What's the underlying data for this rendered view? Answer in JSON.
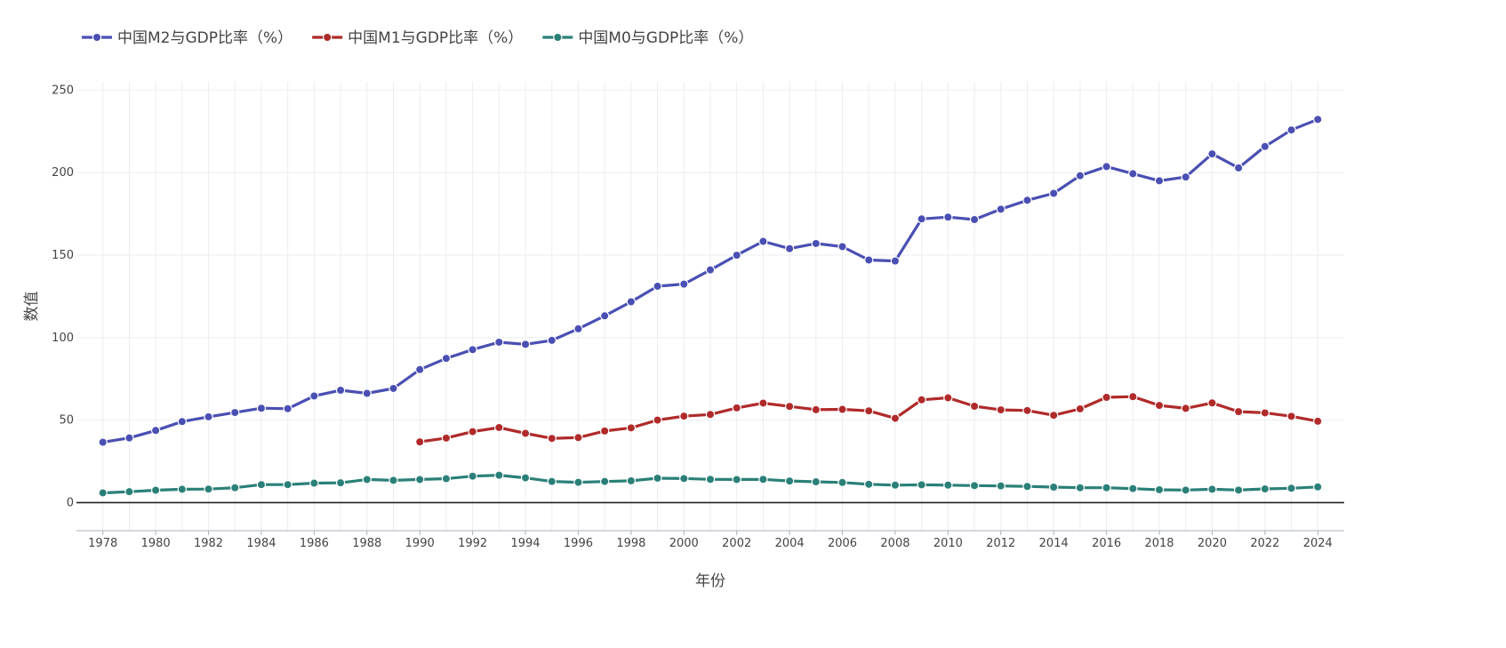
{
  "chart_data": {
    "type": "line",
    "xlabel": "年份",
    "ylabel": "数值",
    "x": [
      1978,
      1979,
      1980,
      1981,
      1982,
      1983,
      1984,
      1985,
      1986,
      1987,
      1988,
      1989,
      1990,
      1991,
      1992,
      1993,
      1994,
      1995,
      1996,
      1997,
      1998,
      1999,
      2000,
      2001,
      2002,
      2003,
      2004,
      2005,
      2006,
      2007,
      2008,
      2009,
      2010,
      2011,
      2012,
      2013,
      2014,
      2015,
      2016,
      2017,
      2018,
      2019,
      2020,
      2021,
      2022,
      2023,
      2024
    ],
    "xlim": [
      1977,
      2025
    ],
    "ylim": [
      -17,
      255
    ],
    "x_ticks": [
      "1978",
      "1980",
      "1982",
      "1984",
      "1986",
      "1988",
      "1990",
      "1992",
      "1994",
      "1996",
      "1998",
      "2000",
      "2002",
      "2004",
      "2006",
      "2008",
      "2010",
      "2012",
      "2014",
      "2016",
      "2018",
      "2020",
      "2022",
      "2024"
    ],
    "y_ticks": [
      "0",
      "50",
      "100",
      "150",
      "200",
      "250"
    ],
    "grid": true,
    "legend_position": "top-left",
    "series": [
      {
        "name": "中国M2与GDP比率（%）",
        "color": "#4a4fb3",
        "values": [
          36.6,
          39.2,
          43.7,
          49.1,
          52.0,
          54.6,
          57.2,
          56.9,
          64.6,
          68.1,
          66.2,
          69.2,
          80.6,
          87.4,
          92.7,
          97.2,
          95.9,
          98.3,
          105.3,
          113.2,
          121.7,
          131.1,
          132.4,
          141.0,
          149.9,
          158.3,
          153.9,
          157.0,
          155.1,
          147.0,
          146.4,
          171.9,
          173.0,
          171.5,
          177.8,
          183.2,
          187.4,
          198.1,
          203.6,
          199.3,
          195.0,
          197.3,
          211.3,
          202.8,
          215.8,
          225.8,
          232.2
        ]
      },
      {
        "name": "中国M1与GDP比率（%）",
        "color": "#b02a2a",
        "values": [
          null,
          null,
          null,
          null,
          null,
          null,
          null,
          null,
          null,
          null,
          null,
          null,
          36.8,
          39.1,
          43.0,
          45.5,
          42.0,
          38.9,
          39.4,
          43.4,
          45.3,
          50.0,
          52.4,
          53.4,
          57.4,
          60.3,
          58.3,
          56.3,
          56.5,
          55.6,
          51.1,
          62.3,
          63.5,
          58.4,
          56.2,
          55.8,
          52.9,
          56.8,
          63.8,
          64.2,
          58.9,
          57.1,
          60.4,
          55.1,
          54.4,
          52.3,
          49.3
        ]
      },
      {
        "name": "中国M0与GDP比率（%）",
        "color": "#2a8078",
        "values": [
          5.9,
          6.6,
          7.5,
          8.1,
          8.2,
          9.0,
          10.9,
          10.9,
          11.8,
          12.0,
          14.0,
          13.5,
          14.0,
          14.5,
          16.0,
          16.6,
          15.0,
          12.8,
          12.3,
          12.8,
          13.2,
          14.8,
          14.6,
          14.1,
          14.0,
          14.1,
          13.1,
          12.6,
          12.2,
          11.1,
          10.6,
          10.8,
          10.6,
          10.3,
          10.1,
          9.8,
          9.4,
          9.0,
          9.0,
          8.5,
          7.8,
          7.6,
          8.1,
          7.6,
          8.3,
          8.7,
          9.5
        ]
      }
    ]
  }
}
